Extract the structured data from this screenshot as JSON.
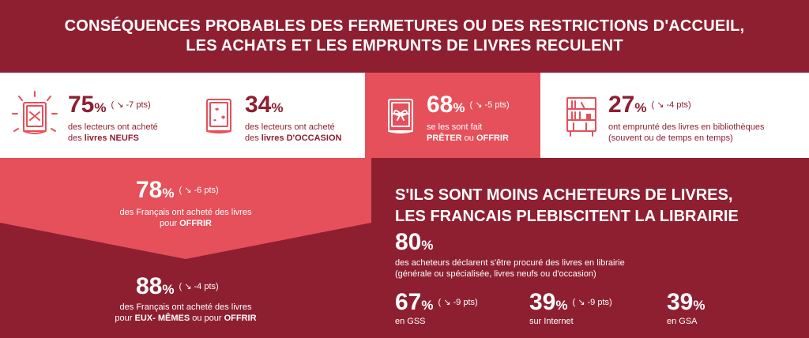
{
  "header": {
    "line1": "CONSÉQUENCES PROBABLES DES FERMETURES OU DES RESTRICTIONS D'ACCUEIL,",
    "line2": "LES ACHATS ET LES EMPRUNTS DE LIVRES RECULENT"
  },
  "colors": {
    "dark_red": "#8e1f31",
    "coral": "#e5505a",
    "white": "#ffffff"
  },
  "stats": [
    {
      "icon": "new-book-icon",
      "value": "75",
      "unit": "%",
      "delta": "( ↘ -7 pts)",
      "line1": "des lecteurs ont acheté",
      "line2_prefix": "des ",
      "line2_bold": "livres NEUFS",
      "line2_suffix": ""
    },
    {
      "icon": "used-book-icon",
      "value": "34",
      "unit": "%",
      "delta": "",
      "line1": "des lecteurs ont acheté",
      "line2_prefix": "des ",
      "line2_bold": "livres D'OCCASION",
      "line2_suffix": ""
    },
    {
      "icon": "gift-book-icon",
      "value": "68",
      "unit": "%",
      "delta": "( ↘ -5 pts)",
      "line1": "se les sont fait",
      "line2_prefix": "",
      "line2_bold": "PRÊTER",
      "line2_mid": " ou ",
      "line2_bold2": "OFFRIR"
    },
    {
      "icon": "library-shelf-icon",
      "value": "27",
      "unit": "%",
      "delta": "( ↘ -4 pts)",
      "line1": "ont emprunté des livres en bibliothèques",
      "line2": "(souvent ou de temps en temps)"
    }
  ],
  "gift": {
    "value": "78",
    "unit": "%",
    "delta": "( ↘ -6 pts)",
    "line1": "des Français ont acheté des livres",
    "line2_prefix": "pour ",
    "line2_bold": "OFFRIR"
  },
  "self": {
    "value": "88",
    "unit": "%",
    "delta": "( ↘ -4 pts)",
    "line1": "des Français ont acheté des livres",
    "line2_prefix": "pour ",
    "line2_bold": "EUX- MÊMES",
    "line2_mid": " ou pour ",
    "line2_bold2": "OFFRIR"
  },
  "librairie": {
    "title1": "S'ILS SONT MOINS ACHETEURS DE LIVRES,",
    "title2": "LES FRANCAIS PLEBISCITENT LA LIBRAIRIE",
    "value": "80",
    "unit": "%",
    "line1": "des acheteurs déclarent s'être procuré des livres en librairie",
    "line2": "(générale ou spécialisée, livres neufs ou d'occasion)",
    "channels": [
      {
        "value": "67",
        "unit": "%",
        "delta": "( ↘ -9 pts)",
        "label": "en GSS"
      },
      {
        "value": "39",
        "unit": "%",
        "delta": "( ↘ -9 pts)",
        "label": "sur Internet"
      },
      {
        "value": "39",
        "unit": "%",
        "delta": "",
        "label": "en GSA"
      }
    ]
  }
}
